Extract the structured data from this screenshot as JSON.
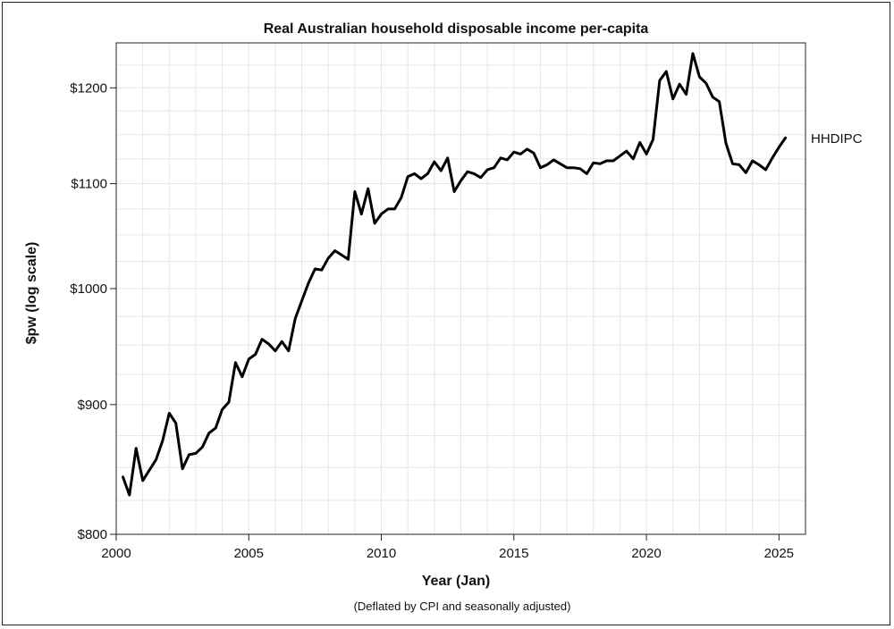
{
  "chart_data": {
    "type": "line",
    "title": "Real Australian household disposable income per-capita",
    "xlabel": "Year (Jan)",
    "ylabel": "$pw (log scale)",
    "note": "(Deflated by CPI and seasonally adjusted)",
    "y_scale": "log",
    "xlim": [
      2000,
      2026
    ],
    "ylim": [
      800,
      1250
    ],
    "grid": true,
    "legend": "none",
    "x_ticks": [
      2000,
      2005,
      2010,
      2015,
      2020,
      2025
    ],
    "x_tick_labels": [
      "2000",
      "2005",
      "2010",
      "2015",
      "2020",
      "2025"
    ],
    "y_ticks": [
      800,
      900,
      1000,
      1100,
      1200
    ],
    "y_tick_labels": [
      "$800",
      "$900",
      "$1000",
      "$1100",
      "$1200"
    ],
    "series": [
      {
        "name": "HHDIPC",
        "x": [
          2000.25,
          2000.5,
          2000.75,
          2001.0,
          2001.25,
          2001.5,
          2001.75,
          2002.0,
          2002.25,
          2002.5,
          2002.75,
          2003.0,
          2003.25,
          2003.5,
          2003.75,
          2004.0,
          2004.25,
          2004.5,
          2004.75,
          2005.0,
          2005.25,
          2005.5,
          2005.75,
          2006.0,
          2006.25,
          2006.5,
          2006.75,
          2007.0,
          2007.25,
          2007.5,
          2007.75,
          2008.0,
          2008.25,
          2008.5,
          2008.75,
          2009.0,
          2009.25,
          2009.5,
          2009.75,
          2010.0,
          2010.25,
          2010.5,
          2010.75,
          2011.0,
          2011.25,
          2011.5,
          2011.75,
          2012.0,
          2012.25,
          2012.5,
          2012.75,
          2013.0,
          2013.25,
          2013.5,
          2013.75,
          2014.0,
          2014.25,
          2014.5,
          2014.75,
          2015.0,
          2015.25,
          2015.5,
          2015.75,
          2016.0,
          2016.25,
          2016.5,
          2016.75,
          2017.0,
          2017.25,
          2017.5,
          2017.75,
          2018.0,
          2018.25,
          2018.5,
          2018.75,
          2019.0,
          2019.25,
          2019.5,
          2019.75,
          2020.0,
          2020.25,
          2020.5,
          2020.75,
          2021.0,
          2021.25,
          2021.5,
          2021.75,
          2022.0,
          2022.25,
          2022.5,
          2022.75,
          2023.0,
          2023.25,
          2023.5,
          2023.75,
          2024.0,
          2024.25,
          2024.5,
          2024.75,
          2025.0,
          2025.25
        ],
        "values": [
          843,
          829,
          865,
          840,
          848,
          856,
          871,
          893,
          885,
          849,
          860,
          861,
          866,
          877,
          881,
          896,
          902,
          935,
          923,
          938,
          942,
          955,
          951,
          945,
          953,
          945,
          973,
          989,
          1005,
          1018,
          1017,
          1028,
          1035,
          1031,
          1027,
          1092,
          1070,
          1095,
          1061,
          1070,
          1075,
          1075,
          1086,
          1107,
          1110,
          1105,
          1110,
          1122,
          1113,
          1126,
          1092,
          1103,
          1112,
          1110,
          1106,
          1114,
          1116,
          1126,
          1124,
          1132,
          1130,
          1135,
          1131,
          1116,
          1119,
          1124,
          1120,
          1116,
          1116,
          1115,
          1110,
          1121,
          1120,
          1123,
          1123,
          1128,
          1133,
          1125,
          1142,
          1130,
          1145,
          1208,
          1218,
          1188,
          1204,
          1193,
          1238,
          1212,
          1205,
          1190,
          1185,
          1141,
          1120,
          1119,
          1111,
          1123,
          1119,
          1114,
          1126,
          1137,
          1147
        ]
      }
    ]
  }
}
